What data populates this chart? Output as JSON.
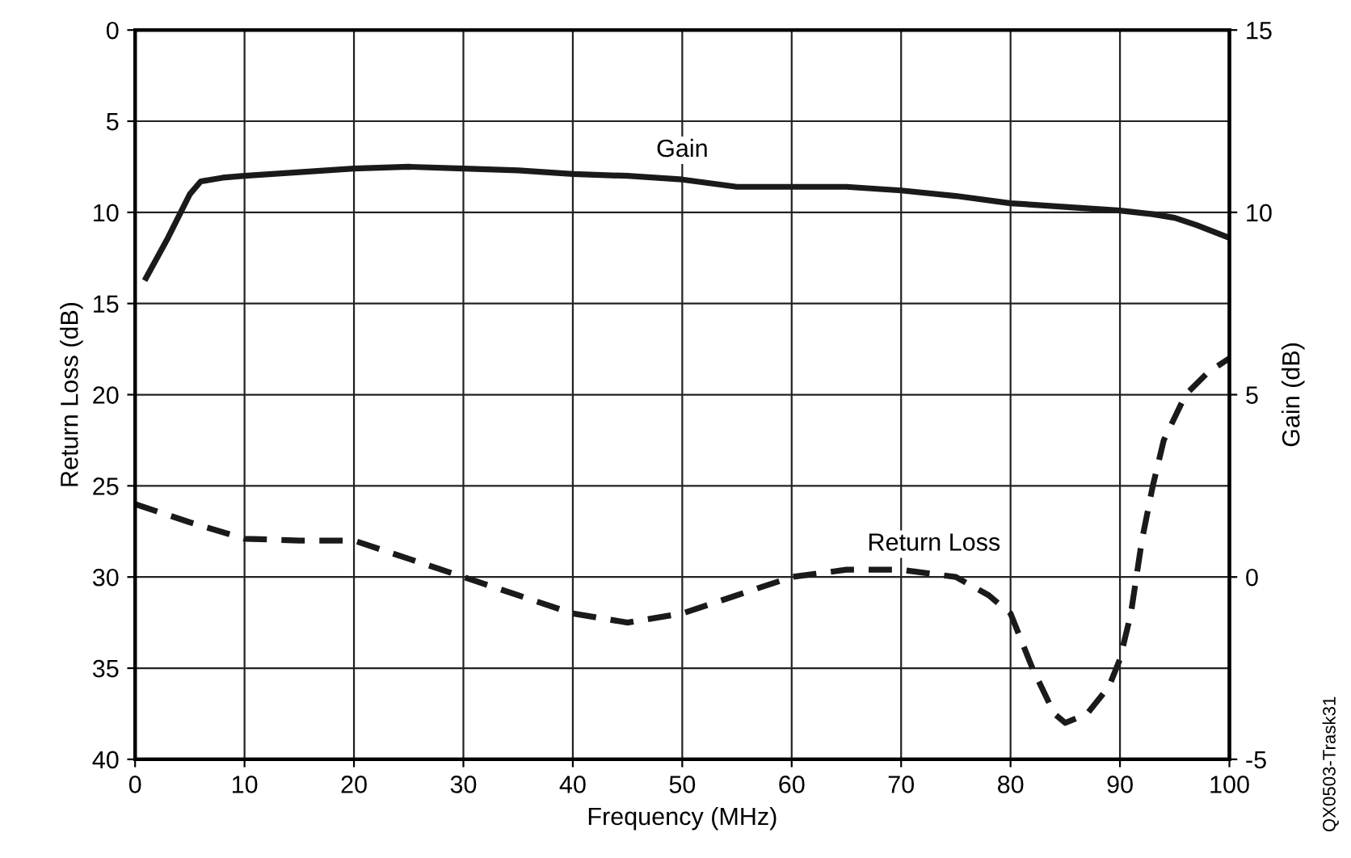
{
  "chart_data": {
    "type": "line",
    "xlabel": "Frequency (MHz)",
    "ylabel": "Return Loss (dB)",
    "y2label": "Gain (dB)",
    "xlim": [
      0,
      100
    ],
    "xticks": [
      0,
      10,
      20,
      30,
      40,
      50,
      60,
      70,
      80,
      90,
      100
    ],
    "ylim": [
      40,
      0
    ],
    "yticks": [
      0,
      5,
      10,
      15,
      20,
      25,
      30,
      35,
      40
    ],
    "y2lim": [
      -5,
      15
    ],
    "y2ticks": [
      -5,
      0,
      5,
      10,
      15
    ],
    "grid": true,
    "series": [
      {
        "name": "Gain",
        "axis": "y2",
        "color": "#1a1a1a",
        "line_style": "solid",
        "x": [
          1,
          3,
          5,
          6,
          8,
          10,
          15,
          20,
          25,
          30,
          35,
          40,
          45,
          50,
          55,
          60,
          65,
          70,
          75,
          80,
          85,
          90,
          93,
          95,
          97,
          100
        ],
        "values": [
          8.2,
          9.3,
          10.5,
          10.85,
          10.95,
          11.0,
          11.1,
          11.2,
          11.25,
          11.2,
          11.15,
          11.05,
          11.0,
          10.9,
          10.7,
          10.7,
          10.7,
          10.6,
          10.45,
          10.25,
          10.15,
          10.05,
          9.95,
          9.85,
          9.65,
          9.3
        ]
      },
      {
        "name": "Return Loss",
        "axis": "y",
        "color": "#1a1a1a",
        "line_style": "dashed",
        "x": [
          0,
          5,
          10,
          15,
          20,
          25,
          30,
          35,
          40,
          45,
          50,
          55,
          60,
          65,
          70,
          75,
          78,
          80,
          82,
          84,
          85,
          87,
          89,
          90,
          91,
          92,
          93,
          94,
          96,
          98,
          100
        ],
        "values": [
          26,
          27,
          27.9,
          28,
          28,
          29,
          30,
          31,
          32,
          32.5,
          32,
          31,
          30,
          29.6,
          29.6,
          30,
          31,
          32,
          35,
          37.5,
          38,
          37.5,
          36,
          34.5,
          32,
          28,
          25,
          22.5,
          20,
          18.8,
          18
        ]
      }
    ],
    "annotations": [
      "QX0503-Trask31"
    ]
  }
}
